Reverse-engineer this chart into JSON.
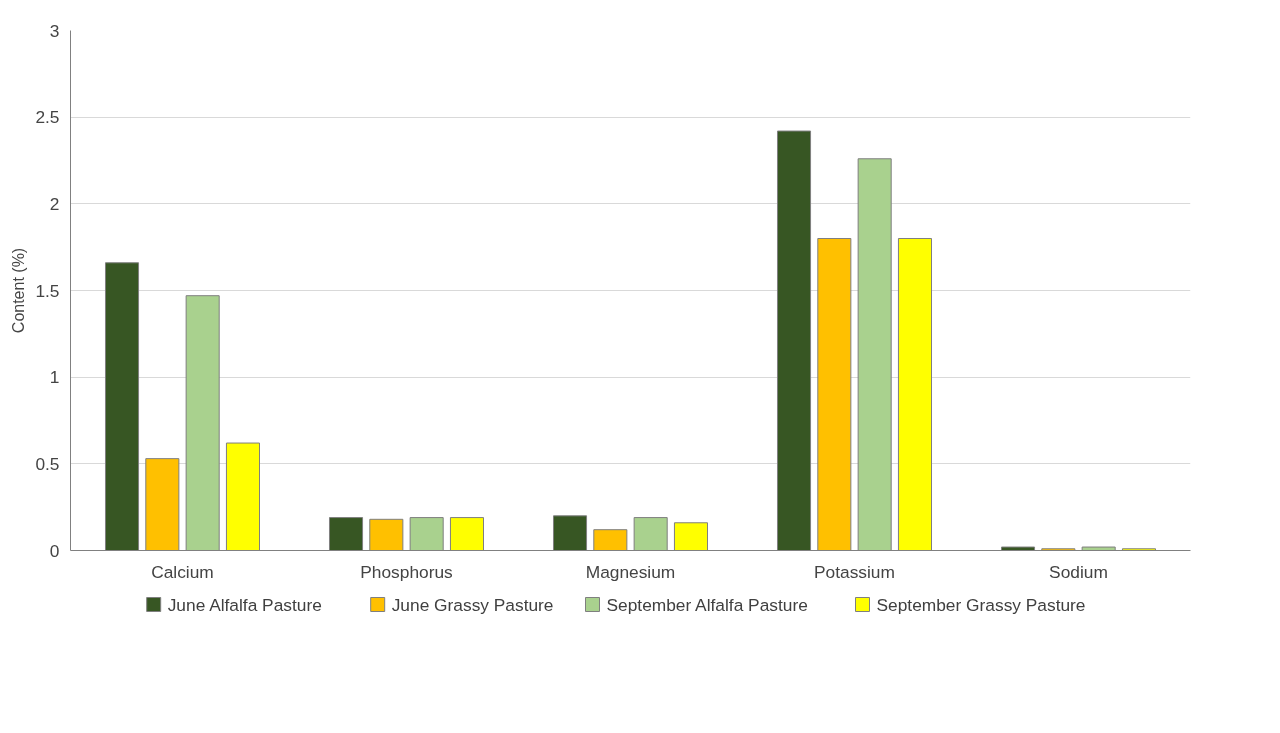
{
  "chart_data": {
    "type": "bar",
    "ylabel": "Content (%)",
    "categories": [
      "Calcium",
      "Phosphorus",
      "Magnesium",
      "Potassium",
      "Sodium"
    ],
    "series": [
      {
        "name": "June Alfalfa Pasture",
        "color": "#375623",
        "values": [
          1.66,
          0.19,
          0.2,
          2.42,
          0.02
        ]
      },
      {
        "name": "June Grassy Pasture",
        "color": "#ffc000",
        "values": [
          0.53,
          0.18,
          0.12,
          1.8,
          0.01
        ]
      },
      {
        "name": "September Alfalfa Pasture",
        "color": "#a9d18e",
        "values": [
          1.47,
          0.19,
          0.19,
          2.26,
          0.02
        ]
      },
      {
        "name": "September Grassy Pasture",
        "color": "#ffff00",
        "values": [
          0.62,
          0.19,
          0.16,
          1.8,
          0.01
        ]
      }
    ],
    "ylim": [
      0,
      3
    ],
    "yticks": [
      0,
      0.5,
      1,
      1.5,
      2,
      2.5,
      3
    ],
    "grid": "y",
    "legend": "bottom"
  }
}
